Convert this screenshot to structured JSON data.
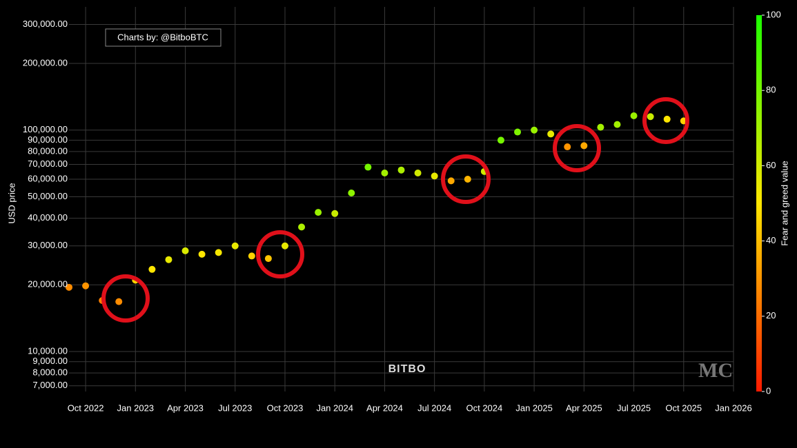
{
  "chart_data": {
    "type": "scatter",
    "y_label": "USD price",
    "colorbar_label": "Fear and greed value",
    "annotation": "Charts by: @BitboBTC",
    "brand": "BITBO",
    "watermark": "MC",
    "log_y": true,
    "grid": true,
    "colorscale": [
      "#ff1a00",
      "#ffe600",
      "#1aff00"
    ],
    "clim": [
      0,
      100
    ],
    "cticks": [
      0,
      20,
      40,
      60,
      80,
      100
    ],
    "xlim": [
      "2022-09",
      "2026-01"
    ],
    "xticks": [
      {
        "value": "2022-10",
        "label": "Oct 2022"
      },
      {
        "value": "2023-01",
        "label": "Jan 2023"
      },
      {
        "value": "2023-04",
        "label": "Apr 2023"
      },
      {
        "value": "2023-07",
        "label": "Jul 2023"
      },
      {
        "value": "2023-10",
        "label": "Oct 2023"
      },
      {
        "value": "2024-01",
        "label": "Jan 2024"
      },
      {
        "value": "2024-04",
        "label": "Apr 2024"
      },
      {
        "value": "2024-07",
        "label": "Jul 2024"
      },
      {
        "value": "2024-10",
        "label": "Oct 2024"
      },
      {
        "value": "2025-01",
        "label": "Jan 2025"
      },
      {
        "value": "2025-04",
        "label": "Apr 2025"
      },
      {
        "value": "2025-07",
        "label": "Jul 2025"
      },
      {
        "value": "2025-10",
        "label": "Oct 2025"
      },
      {
        "value": "2026-01",
        "label": "Jan 2026"
      }
    ],
    "ylim": [
      6600,
      360000
    ],
    "yticks": [
      {
        "value": 7000,
        "label": "7,000.00"
      },
      {
        "value": 8000,
        "label": "8,000.00"
      },
      {
        "value": 9000,
        "label": "9,000.00"
      },
      {
        "value": 10000,
        "label": "10,000.00"
      },
      {
        "value": 20000,
        "label": "20,000.00"
      },
      {
        "value": 30000,
        "label": "30,000.00"
      },
      {
        "value": 40000,
        "label": "40,000.00"
      },
      {
        "value": 50000,
        "label": "50,000.00"
      },
      {
        "value": 60000,
        "label": "60,000.00"
      },
      {
        "value": 70000,
        "label": "70,000.00"
      },
      {
        "value": 80000,
        "label": "80,000.00"
      },
      {
        "value": 90000,
        "label": "90,000.00"
      },
      {
        "value": 100000,
        "label": "100,000.00"
      },
      {
        "value": 200000,
        "label": "200,000.00"
      },
      {
        "value": 300000,
        "label": "300,000.00"
      }
    ],
    "x": [
      "2022-09",
      "2022-10",
      "2022-11",
      "2022-12",
      "2023-01",
      "2023-02",
      "2023-03",
      "2023-04",
      "2023-05",
      "2023-06",
      "2023-07",
      "2023-08",
      "2023-09",
      "2023-10",
      "2023-11",
      "2023-12",
      "2024-01",
      "2024-02",
      "2024-03",
      "2024-04",
      "2024-05",
      "2024-06",
      "2024-07",
      "2024-08",
      "2024-09",
      "2024-10",
      "2024-11",
      "2024-12",
      "2025-01",
      "2025-02",
      "2025-03",
      "2025-04",
      "2025-05",
      "2025-06",
      "2025-07",
      "2025-08",
      "2025-09",
      "2025-10"
    ],
    "values": [
      19500,
      19800,
      17000,
      16800,
      21000,
      23500,
      26000,
      28500,
      27500,
      28000,
      30000,
      27000,
      26300,
      30000,
      36500,
      42500,
      42000,
      52000,
      68000,
      64000,
      66000,
      64000,
      62000,
      59000,
      60000,
      65000,
      90000,
      98000,
      100000,
      96000,
      84000,
      85000,
      103000,
      106000,
      116000,
      115000,
      112000,
      110000
    ],
    "color_values": [
      28,
      30,
      25,
      28,
      45,
      50,
      55,
      58,
      50,
      52,
      55,
      45,
      42,
      55,
      68,
      72,
      62,
      75,
      80,
      70,
      68,
      60,
      55,
      35,
      38,
      60,
      80,
      78,
      72,
      55,
      30,
      35,
      70,
      70,
      72,
      62,
      50,
      45
    ]
  }
}
